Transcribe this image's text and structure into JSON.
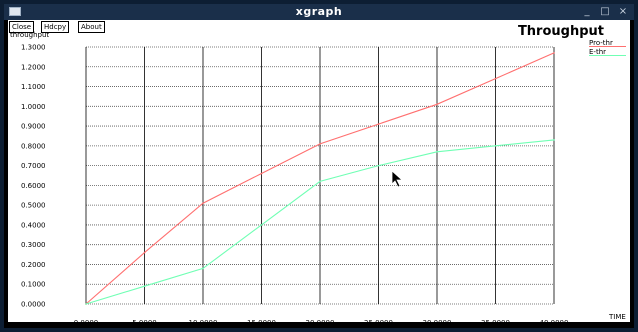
{
  "window": {
    "title": "xgraph",
    "minimize": "_",
    "maximize": "□",
    "close": "×"
  },
  "toolbar": {
    "close_label": "Close",
    "hdcopy_label": "Hdcpy",
    "about_label": "About"
  },
  "y_axis_label": "throughput",
  "graph_title": "Throughput",
  "x_axis_label": "TIME",
  "colors": {
    "pro_thr": "#ff7070",
    "e_thr": "#70ffb4",
    "grid_solid": "#000000",
    "grid_dotted": "#555555"
  },
  "chart_data": {
    "type": "line",
    "title": "Throughput",
    "xlabel": "TIME",
    "ylabel": "throughput",
    "xlim": [
      0,
      40
    ],
    "ylim": [
      0,
      1.3
    ],
    "grid": true,
    "legend": "top-right",
    "x_ticks": [
      "0.0000",
      "5.0000",
      "10.0000",
      "15.0000",
      "20.0000",
      "25.0000",
      "30.0000",
      "35.0000",
      "40.0000"
    ],
    "y_ticks": [
      "0.0000",
      "0.1000",
      "0.2000",
      "0.3000",
      "0.4000",
      "0.5000",
      "0.6000",
      "0.7000",
      "0.8000",
      "0.9000",
      "1.0000",
      "1.1000",
      "1.2000",
      "1.3000"
    ],
    "series": [
      {
        "name": "Pro-thr",
        "color": "#ff7070",
        "x": [
          0,
          5,
          10,
          15,
          20,
          25,
          30,
          35,
          40
        ],
        "y": [
          0,
          0.26,
          0.51,
          0.66,
          0.81,
          0.91,
          1.01,
          1.14,
          1.27
        ]
      },
      {
        "name": "E-thr",
        "color": "#70ffb4",
        "x": [
          0,
          5,
          10,
          15,
          20,
          25,
          30,
          35,
          40
        ],
        "y": [
          0,
          0.09,
          0.18,
          0.4,
          0.62,
          0.7,
          0.77,
          0.8,
          0.83
        ]
      }
    ]
  }
}
